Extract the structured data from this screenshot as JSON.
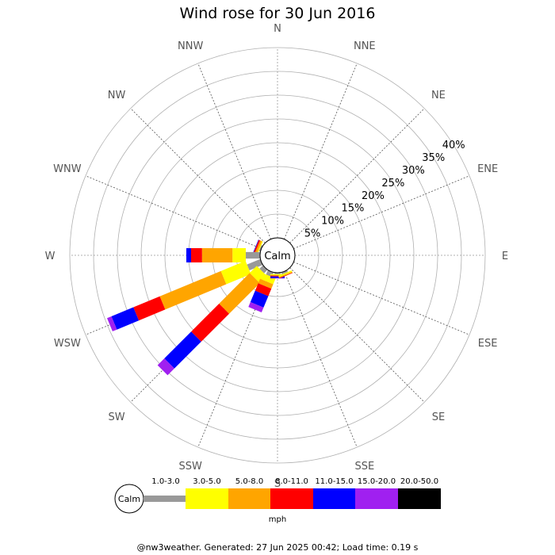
{
  "title": "Wind rose for 30 Jun 2016",
  "footer": "@nw3weather. Generated: 27 Jun 2025 00:42; Load time: 0.19 s",
  "chart_data": {
    "type": "windrose",
    "title": "Wind rose for 30 Jun 2016",
    "directions": [
      "N",
      "NNE",
      "NE",
      "ENE",
      "E",
      "ESE",
      "SE",
      "SSE",
      "S",
      "SSW",
      "SW",
      "WSW",
      "W",
      "WNW",
      "NW",
      "NNW"
    ],
    "radial_ticks": [
      "5%",
      "10%",
      "15%",
      "20%",
      "25%",
      "30%",
      "35%",
      "40%"
    ],
    "radial_values": [
      5,
      10,
      15,
      20,
      25,
      30,
      35,
      40
    ],
    "radial_max": 40,
    "calm_label": "Calm",
    "unit_label": "mph",
    "speed_bins": [
      {
        "label": "1.0-3.0",
        "color": "#999999"
      },
      {
        "label": "3.0-5.0",
        "color": "#ffff00"
      },
      {
        "label": "5.0-8.0",
        "color": "#ffa500"
      },
      {
        "label": "8.0-11.0",
        "color": "#ff0000"
      },
      {
        "label": "11.0-15.0",
        "color": "#0000ff"
      },
      {
        "label": "15.0-20.0",
        "color": "#a020f0"
      },
      {
        "label": "20.0-50.0",
        "color": "#000000"
      }
    ],
    "series": [
      {
        "direction": "WNW",
        "cumulative": [
          0.3,
          0.5,
          0.9,
          1.2,
          1.3,
          1.3,
          1.3
        ]
      },
      {
        "direction": "W",
        "cumulative": [
          3.0,
          5.8,
          12.2,
          14.5,
          15.5,
          15.5,
          15.5
        ]
      },
      {
        "direction": "WSW",
        "cumulative": [
          3.0,
          8.6,
          22.5,
          28.5,
          33.5,
          34.5,
          34.5
        ]
      },
      {
        "direction": "SW",
        "cumulative": [
          1.0,
          3.1,
          12.2,
          20.5,
          28.5,
          30.5,
          30.5
        ]
      },
      {
        "direction": "SSW",
        "cumulative": [
          1.0,
          2.3,
          3.3,
          5.0,
          7.6,
          8.7,
          8.7
        ]
      },
      {
        "direction": "S",
        "cumulative": [
          0.3,
          0.5,
          0.6,
          0.8,
          1.1,
          1.2,
          1.2
        ]
      },
      {
        "direction": "SSE",
        "cumulative": [
          0.4,
          0.7,
          0.9,
          1.0,
          1.0,
          1.0,
          1.0
        ]
      }
    ]
  }
}
